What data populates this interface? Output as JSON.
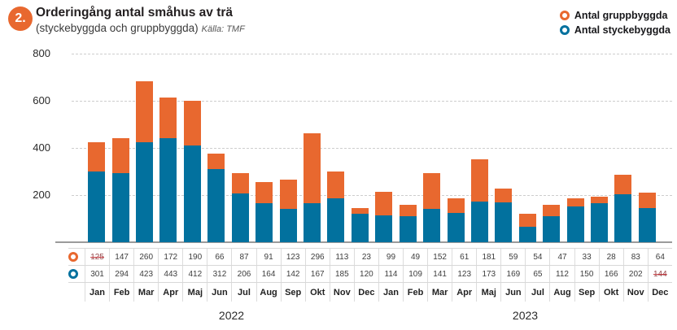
{
  "header": {
    "badge": "2.",
    "title": "Orderingång antal småhus av trä",
    "subtitle": "(styckebyggda och gruppbyggda)",
    "source": "Källa: TMF"
  },
  "colors": {
    "accent_orange": "#e8682f",
    "accent_blue": "#02719e",
    "strike_red": "#c4393f"
  },
  "legend": [
    {
      "label": "Antal gruppbyggda",
      "color": "#e8682f"
    },
    {
      "label": "Antal styckebyggda",
      "color": "#02719e"
    }
  ],
  "chart_data": {
    "type": "bar",
    "stacked": true,
    "title": "Orderingång antal småhus av trä (styckebyggda och gruppbyggda)",
    "source": "Källa: TMF",
    "categories": [
      "Jan",
      "Feb",
      "Mar",
      "Apr",
      "Maj",
      "Jun",
      "Jul",
      "Aug",
      "Sep",
      "Okt",
      "Nov",
      "Dec",
      "Jan",
      "Feb",
      "Mar",
      "Apr",
      "Maj",
      "Jun",
      "Jul",
      "Aug",
      "Sep",
      "Okt",
      "Nov",
      "Dec"
    ],
    "years": [
      {
        "label": "2022",
        "span": 12
      },
      {
        "label": "2023",
        "span": 12
      }
    ],
    "series": [
      {
        "name": "Antal gruppbyggda",
        "color": "#e8682f",
        "values": [
          125,
          147,
          260,
          172,
          190,
          66,
          87,
          91,
          123,
          296,
          113,
          23,
          99,
          49,
          152,
          61,
          181,
          59,
          54,
          47,
          33,
          28,
          83,
          64
        ],
        "struck_indices": [
          0
        ]
      },
      {
        "name": "Antal styckebyggda",
        "color": "#02719e",
        "values": [
          301,
          294,
          423,
          443,
          412,
          312,
          206,
          164,
          142,
          167,
          185,
          120,
          114,
          109,
          141,
          123,
          173,
          169,
          65,
          112,
          150,
          166,
          202,
          144
        ],
        "struck_indices": [
          23
        ]
      }
    ],
    "ylim": [
      0,
      800
    ],
    "yticks": [
      200,
      400,
      600,
      800
    ],
    "grid": "horizontal-dashed",
    "legend_position": "top-right"
  }
}
